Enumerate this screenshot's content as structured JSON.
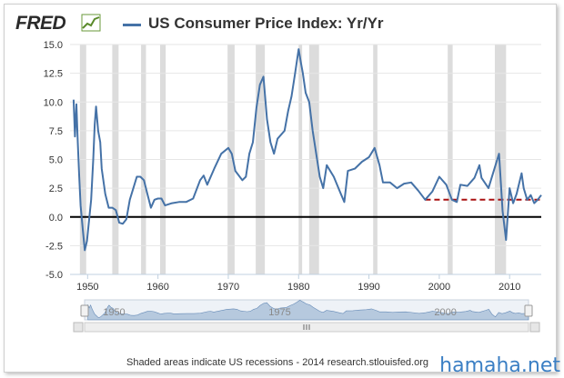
{
  "header": {
    "logo_text": "FRED",
    "logo_icon": "chart-trend-icon",
    "series_title": "US Consumer Price Index: Yr/Yr"
  },
  "footer": {
    "note": "Shaded areas indicate US recessions - 2014 research.stlouisfed.org"
  },
  "watermark": "hamaha.net",
  "colors": {
    "series": "#4572a7",
    "recession": "#dcdcdc",
    "zero_line": "#000000",
    "target_line": "#aa1111",
    "navigator_fill": "#a9bfd9"
  },
  "navigator": {
    "labels": [
      "1950",
      "1975",
      "2000"
    ],
    "scroll_icon": "grip-icon"
  },
  "chart_data": {
    "type": "line",
    "title": "US Consumer Price Index: Yr/Yr",
    "xlim": [
      1947.5,
      2014.5
    ],
    "ylim": [
      -5.0,
      15.0
    ],
    "x_ticks": [
      "1950",
      "1960",
      "1970",
      "1980",
      "1990",
      "2000",
      "2010"
    ],
    "y_ticks": [
      "-5.0",
      "-2.5",
      "0.0",
      "2.5",
      "5.0",
      "7.5",
      "10.0",
      "12.5",
      "15.0"
    ],
    "grid": "horizontal",
    "recessions": [
      [
        1948.9,
        1949.8
      ],
      [
        1953.5,
        1954.4
      ],
      [
        1957.6,
        1958.3
      ],
      [
        1960.3,
        1961.1
      ],
      [
        1969.9,
        1970.9
      ],
      [
        1973.9,
        1975.2
      ],
      [
        1980.0,
        1980.5
      ],
      [
        1981.5,
        1982.9
      ],
      [
        1990.6,
        1991.2
      ],
      [
        2001.2,
        2001.9
      ],
      [
        2007.9,
        2009.5
      ]
    ],
    "reference_lines": [
      {
        "style": "solid",
        "y": 0.0,
        "from": 1947.5,
        "to": 2014.5
      },
      {
        "style": "dashed",
        "y": 1.5,
        "from": 1998.0,
        "to": 2014.5
      }
    ],
    "series": [
      {
        "x": [
          1948.0,
          1948.2,
          1948.4,
          1948.6,
          1948.8,
          1949.0,
          1949.3,
          1949.6,
          1949.9,
          1950.2,
          1950.5,
          1950.8,
          1951.0,
          1951.2,
          1951.5,
          1951.8,
          1952.0,
          1952.5,
          1953.0,
          1953.5,
          1954.0,
          1954.5,
          1955.0,
          1955.5,
          1956.0,
          1956.5,
          1957.0,
          1957.5,
          1958.0,
          1958.5,
          1959.0,
          1959.5,
          1960.0,
          1960.5,
          1961.0,
          1962.0,
          1963.0,
          1964.0,
          1965.0,
          1966.0,
          1966.5,
          1967.0,
          1968.0,
          1969.0,
          1970.0,
          1970.5,
          1971.0,
          1972.0,
          1972.5,
          1973.0,
          1973.5,
          1974.0,
          1974.5,
          1975.0,
          1975.5,
          1976.0,
          1976.5,
          1977.0,
          1978.0,
          1978.5,
          1979.0,
          1979.5,
          1980.0,
          1980.3,
          1980.6,
          1981.0,
          1981.5,
          1982.0,
          1982.5,
          1983.0,
          1983.5,
          1984.0,
          1985.0,
          1986.0,
          1986.5,
          1987.0,
          1988.0,
          1989.0,
          1990.0,
          1990.8,
          1991.5,
          1992.0,
          1993.0,
          1994.0,
          1995.0,
          1996.0,
          1997.0,
          1998.0,
          1999.0,
          2000.0,
          2001.0,
          2001.8,
          2002.5,
          2003.0,
          2004.0,
          2005.0,
          2005.7,
          2006.0,
          2007.0,
          2008.0,
          2008.5,
          2009.0,
          2009.5,
          2010.0,
          2010.5,
          2011.0,
          2011.7,
          2012.0,
          2012.5,
          2013.0,
          2013.5,
          2014.0,
          2014.5
        ],
        "y": [
          10.2,
          7.0,
          9.8,
          6.5,
          3.5,
          1.0,
          -1.0,
          -2.9,
          -2.1,
          -0.3,
          1.5,
          5.0,
          8.0,
          9.6,
          7.5,
          6.5,
          4.2,
          2.0,
          0.8,
          0.8,
          0.6,
          -0.5,
          -0.6,
          -0.2,
          1.5,
          2.5,
          3.5,
          3.5,
          3.2,
          2.0,
          0.8,
          1.5,
          1.6,
          1.6,
          1.0,
          1.2,
          1.3,
          1.3,
          1.6,
          3.2,
          3.6,
          2.8,
          4.2,
          5.5,
          6.0,
          5.5,
          4.0,
          3.2,
          3.5,
          5.5,
          6.5,
          9.5,
          11.5,
          12.2,
          8.5,
          6.5,
          5.5,
          6.8,
          7.5,
          9.2,
          10.5,
          12.5,
          14.6,
          13.5,
          12.5,
          10.8,
          10.0,
          7.5,
          5.5,
          3.5,
          2.5,
          4.5,
          3.5,
          2.0,
          1.3,
          4.0,
          4.2,
          4.8,
          5.2,
          6.0,
          4.5,
          3.0,
          3.0,
          2.5,
          2.9,
          3.0,
          2.3,
          1.5,
          2.2,
          3.5,
          2.8,
          1.5,
          1.3,
          2.8,
          2.7,
          3.4,
          4.5,
          3.4,
          2.5,
          4.5,
          5.5,
          0.5,
          -2.0,
          2.5,
          1.2,
          2.0,
          3.8,
          2.5,
          1.5,
          1.9,
          1.2,
          1.5,
          1.9
        ]
      }
    ]
  }
}
